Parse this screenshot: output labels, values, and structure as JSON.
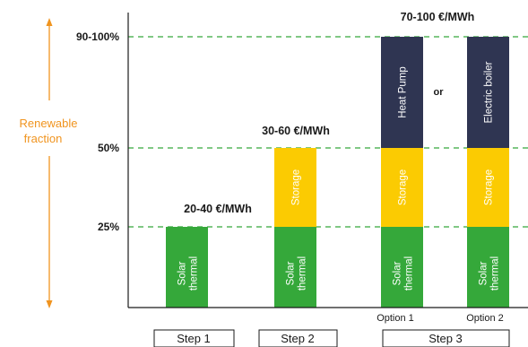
{
  "chart_data": {
    "type": "bar",
    "stacked": true,
    "ylabel": "Renewable fraction",
    "yticks": [
      {
        "value": 25,
        "label": "25%"
      },
      {
        "value": 50,
        "label": "50%"
      },
      {
        "value": 90,
        "label": "90-100%"
      }
    ],
    "grid": "dashed horizontal at tick values",
    "bars": [
      {
        "id": "step1",
        "segments": [
          {
            "type": "solar",
            "from": 0,
            "to": 25,
            "label": "Solar thermal"
          }
        ],
        "price": "20-40 €/MWh"
      },
      {
        "id": "step2",
        "segments": [
          {
            "type": "solar",
            "from": 0,
            "to": 25,
            "label": "Solar thermal"
          },
          {
            "type": "storage",
            "from": 25,
            "to": 50,
            "label": "Storage"
          }
        ],
        "price": "30-60 €/MWh"
      },
      {
        "id": "opt1",
        "segments": [
          {
            "type": "solar",
            "from": 0,
            "to": 25,
            "label": "Solar thermal"
          },
          {
            "type": "storage",
            "from": 25,
            "to": 50,
            "label": "Storage"
          },
          {
            "type": "backup",
            "from": 50,
            "to": 90,
            "label": "Heat Pump"
          }
        ],
        "option_label": "Option 1"
      },
      {
        "id": "opt2",
        "segments": [
          {
            "type": "solar",
            "from": 0,
            "to": 25,
            "label": "Solar thermal"
          },
          {
            "type": "storage",
            "from": 25,
            "to": 50,
            "label": "Storage"
          },
          {
            "type": "backup",
            "from": 50,
            "to": 90,
            "label": "Electric boiler"
          }
        ],
        "option_label": "Option 2"
      }
    ],
    "step3_price": "70-100 €/MWh",
    "or_label": "or",
    "steps": [
      "Step 1",
      "Step 2",
      "Step 3"
    ],
    "colors": {
      "solar": "#35a83a",
      "storage": "#fbcb02",
      "backup": "#2f3552",
      "grid": "#35a83a",
      "accent": "#f0941f",
      "axis": "#1a1a1a"
    }
  }
}
